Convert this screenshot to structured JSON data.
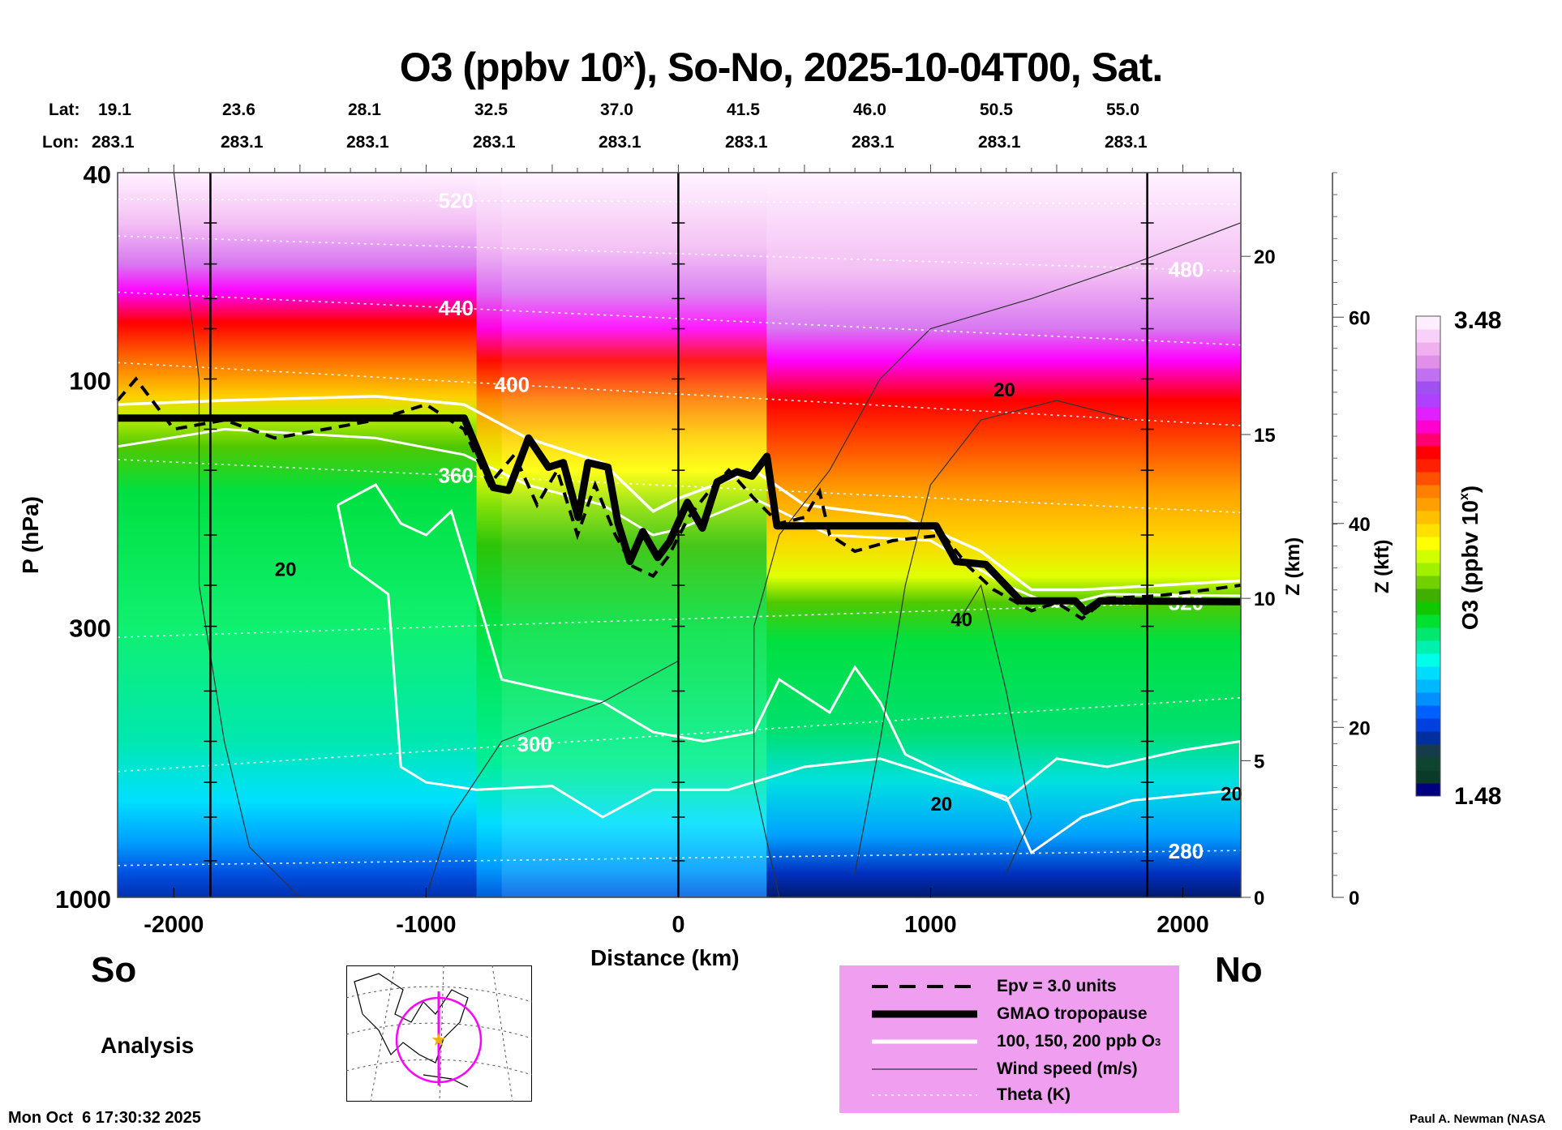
{
  "chart_data": {
    "type": "heatmap",
    "title": "O3 (ppbv 10",
    "title_sup": "x",
    "title_rest": "), So-No, 2025-10-04T00, Sat.",
    "xlabel": "Distance (km)",
    "ylabel": "P (hPa)",
    "y2label": "Z (km)",
    "y3label": "Z (kft)",
    "xlim": [
      -2223,
      2230
    ],
    "ylim": [
      1000,
      40
    ],
    "yscale": "log",
    "xticks": [
      -2000,
      -1000,
      0,
      1000,
      2000
    ],
    "xtick_labels": [
      "-2000",
      "-1000",
      "0",
      "1000",
      "2000"
    ],
    "yticks": [
      40,
      100,
      300,
      1000
    ],
    "ytick_labels": [
      "40",
      "100",
      "300",
      "1000"
    ],
    "zkm_ticks": [
      {
        "label": "0",
        "p": 1000
      },
      {
        "label": "5",
        "p": 545
      },
      {
        "label": "10",
        "p": 265
      },
      {
        "label": "15",
        "p": 128
      },
      {
        "label": "20",
        "p": 58
      }
    ],
    "zkft_ticks": [
      {
        "label": "0",
        "p": 1000
      },
      {
        "label": "20",
        "p": 470
      },
      {
        "label": "40",
        "p": 190
      },
      {
        "label": "60",
        "p": 76
      }
    ],
    "lat_label": "Lat:",
    "lon_label": "Lon:",
    "lat": [
      "19.1",
      "23.6",
      "28.1",
      "32.5",
      "37.0",
      "41.5",
      "46.0",
      "50.5",
      "55.0"
    ],
    "lon": [
      "283.1",
      "283.1",
      "283.1",
      "283.1",
      "283.1",
      "283.1",
      "283.1",
      "283.1",
      "283.1"
    ],
    "vertical_markers_km": [
      -1855,
      0,
      1859
    ],
    "colorbar": {
      "label": "O3 (ppbv 10",
      "label_sup": "x",
      "label_end": ")",
      "min_label": "1.48",
      "max_label": "3.48",
      "min": 1.48,
      "max": 3.48
    },
    "tropopause": [
      [
        -2223,
        119
      ],
      [
        -849,
        119
      ],
      [
        -733,
        162
      ],
      [
        -673,
        164
      ],
      [
        -594,
        130
      ],
      [
        -515,
        148
      ],
      [
        -456,
        145
      ],
      [
        -397,
        185
      ],
      [
        -358,
        145
      ],
      [
        -279,
        148
      ],
      [
        -240,
        189
      ],
      [
        -192,
        225
      ],
      [
        -141,
        197
      ],
      [
        -82,
        221
      ],
      [
        -35,
        206
      ],
      [
        36,
        173
      ],
      [
        95,
        194
      ],
      [
        154,
        158
      ],
      [
        233,
        151
      ],
      [
        292,
        154
      ],
      [
        351,
        141
      ],
      [
        391,
        192
      ],
      [
        1022,
        192
      ],
      [
        1101,
        225
      ],
      [
        1219,
        228
      ],
      [
        1357,
        268
      ],
      [
        1573,
        268
      ],
      [
        1613,
        281
      ],
      [
        1672,
        268
      ],
      [
        2228,
        269
      ]
    ],
    "epv": [
      [
        -2223,
        110
      ],
      [
        -2150,
        100
      ],
      [
        -2000,
        125
      ],
      [
        -1800,
        120
      ],
      [
        -1600,
        130
      ],
      [
        -1400,
        125
      ],
      [
        -1200,
        120
      ],
      [
        -1000,
        112
      ],
      [
        -850,
        125
      ],
      [
        -750,
        160
      ],
      [
        -650,
        140
      ],
      [
        -560,
        175
      ],
      [
        -480,
        150
      ],
      [
        -400,
        200
      ],
      [
        -330,
        160
      ],
      [
        -250,
        200
      ],
      [
        -180,
        230
      ],
      [
        -100,
        240
      ],
      [
        -40,
        220
      ],
      [
        40,
        185
      ],
      [
        120,
        165
      ],
      [
        200,
        150
      ],
      [
        300,
        170
      ],
      [
        400,
        190
      ],
      [
        500,
        185
      ],
      [
        560,
        165
      ],
      [
        600,
        200
      ],
      [
        700,
        215
      ],
      [
        850,
        205
      ],
      [
        1050,
        200
      ],
      [
        1150,
        230
      ],
      [
        1250,
        255
      ],
      [
        1400,
        280
      ],
      [
        1500,
        270
      ],
      [
        1600,
        290
      ],
      [
        1700,
        265
      ],
      [
        1900,
        262
      ],
      [
        2100,
        255
      ],
      [
        2228,
        250
      ]
    ],
    "theta_lines": [
      {
        "label": "520",
        "p_left": 45,
        "p_right": 46
      },
      {
        "label": "480",
        "p_left": 53,
        "p_right": 62
      },
      {
        "label": "440",
        "p_left": 68,
        "p_right": 86
      },
      {
        "label": "400",
        "p_left": 93,
        "p_right": 123
      },
      {
        "label": "360",
        "p_left": 143,
        "p_right": 181
      },
      {
        "label": "320",
        "p_left": 315,
        "p_right": 268
      },
      {
        "label": "300",
        "p_left": 572,
        "p_right": 412
      },
      {
        "label": "280",
        "p_left": 868,
        "p_right": 812
      }
    ],
    "wind_labels": [
      {
        "label": "20",
        "km": -1600,
        "p": 240
      },
      {
        "label": "20",
        "km": 1250,
        "p": 108
      },
      {
        "label": "40",
        "km": 1080,
        "p": 300
      },
      {
        "label": "20",
        "km": 1000,
        "p": 680
      },
      {
        "label": "20",
        "km": 2150,
        "p": 650
      }
    ],
    "legend": [
      {
        "style": "dashed",
        "label": "Epv = 3.0 units"
      },
      {
        "style": "thick",
        "label": "GMAO tropopause"
      },
      {
        "style": "white",
        "label": "100, 150, 200 ppb O",
        "label_sub": "3"
      },
      {
        "style": "thin",
        "label": "Wind speed (m/s)"
      },
      {
        "style": "dotted",
        "label": "Theta (K)"
      }
    ]
  },
  "left_label": "So",
  "right_label": "No",
  "analysis_label": "Analysis",
  "timestamp": "Mon Oct  6 17:30:32 2025",
  "credit": "Paul A. Newman (NASA"
}
